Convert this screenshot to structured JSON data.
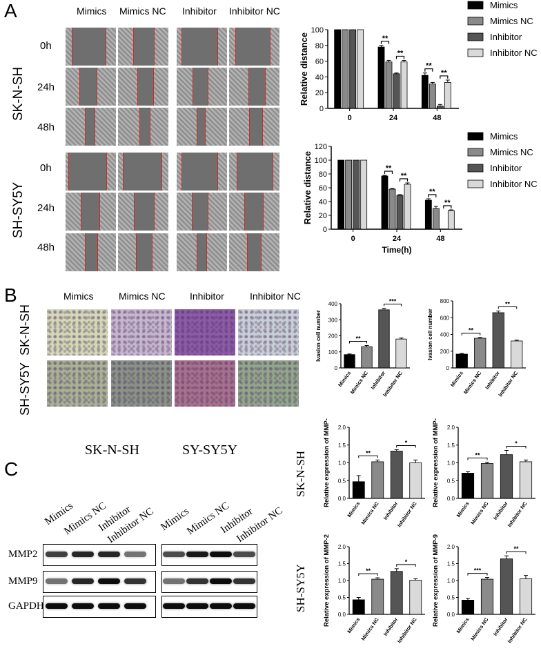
{
  "panels": {
    "a": "A",
    "b": "B",
    "c": "C"
  },
  "panelA": {
    "columns": [
      "Mimics",
      "Mimics NC",
      "Inhibitor",
      "Inhibitor NC"
    ],
    "cell_lines": [
      "SK-N-SH",
      "SH-SY5Y"
    ],
    "times": [
      "0h",
      "24h",
      "48h"
    ]
  },
  "panelB": {
    "columns": [
      "Mimics",
      "Mimics NC",
      "Inhibitor",
      "Inhibitor NC"
    ],
    "cell_lines": [
      "SK-N-SH",
      "SH-SY5Y"
    ]
  },
  "panelC": {
    "blot_titles": [
      "SK-N-SH",
      "SY-SY5Y"
    ],
    "lanes": [
      "Mimics",
      "Mimics NC",
      "Inhibitor",
      "Inhibitor NC"
    ],
    "rows": [
      "MMP2",
      "MMP9",
      "GAPDH"
    ],
    "side_labels": [
      "SK-N-SH",
      "SH-SY5Y"
    ]
  },
  "colors": {
    "black": "#000000",
    "dark_gray": "#555555",
    "mid_gray": "#8a8a8a",
    "light_gray": "#d9d9d9",
    "scratch_edge": "#d02a2a"
  },
  "chart_data": [
    {
      "type": "bar",
      "id": "a1",
      "categories": [
        "0",
        "24",
        "48"
      ],
      "series": [
        {
          "name": "Mimics",
          "values": [
            100,
            78,
            42
          ],
          "err": [
            0,
            2,
            3
          ]
        },
        {
          "name": "Mimics NC",
          "values": [
            100,
            59,
            31
          ],
          "err": [
            0,
            2,
            2
          ]
        },
        {
          "name": "Inhibitor",
          "values": [
            100,
            44,
            3
          ],
          "err": [
            0,
            1,
            2
          ]
        },
        {
          "name": "Inhibitor NC",
          "values": [
            100,
            59,
            33
          ],
          "err": [
            0,
            2,
            3
          ]
        }
      ],
      "ylabel": "Relative distance",
      "xlabel": "",
      "ylim": [
        0,
        100
      ],
      "yticks": [
        "0",
        "20",
        "40",
        "60",
        "80",
        "100"
      ],
      "sig": [
        "**",
        "**",
        "**",
        "**"
      ],
      "legend": "right"
    },
    {
      "type": "bar",
      "id": "a2",
      "categories": [
        "0",
        "24",
        "48"
      ],
      "series": [
        {
          "name": "Mimics",
          "values": [
            100,
            77,
            42
          ],
          "err": [
            0,
            1,
            2
          ]
        },
        {
          "name": "Mimics NC",
          "values": [
            100,
            58,
            30
          ],
          "err": [
            0,
            1,
            3
          ]
        },
        {
          "name": "Inhibitor",
          "values": [
            100,
            49,
            0
          ],
          "err": [
            0,
            1,
            0
          ]
        },
        {
          "name": "Inhibitor NC",
          "values": [
            100,
            65,
            27
          ],
          "err": [
            0,
            2,
            1
          ]
        }
      ],
      "ylabel": "Relative distance",
      "xlabel": "Time(h)",
      "ylim": [
        0,
        120
      ],
      "yticks": [
        "0",
        "20",
        "40",
        "60",
        "80",
        "100",
        "120"
      ],
      "sig": [
        "**",
        "**",
        "**",
        "**"
      ],
      "legend": "right"
    },
    {
      "type": "bar",
      "id": "b1",
      "categories": [
        "Mimics",
        "Mimics NC",
        "Inhibitor",
        "Inhibitor NC"
      ],
      "values": [
        83,
        132,
        362,
        180
      ],
      "err": [
        4,
        8,
        10,
        6
      ],
      "colors": [
        "#000000",
        "#8a8a8a",
        "#555555",
        "#d9d9d9"
      ],
      "ylabel": "Ivasion cell number",
      "ylim": [
        0,
        400
      ],
      "yticks": [
        "0",
        "100",
        "200",
        "300",
        "400"
      ],
      "sig": [
        "**",
        "***"
      ]
    },
    {
      "type": "bar",
      "id": "b2",
      "categories": [
        "Mimics",
        "Mimics NC",
        "Inhibitor",
        "Inhibitor NC"
      ],
      "values": [
        165,
        355,
        660,
        322
      ],
      "err": [
        8,
        10,
        20,
        10
      ],
      "colors": [
        "#000000",
        "#8a8a8a",
        "#555555",
        "#d9d9d9"
      ],
      "ylabel": "Ivasion cell number",
      "ylim": [
        0,
        800
      ],
      "yticks": [
        "0",
        "200",
        "400",
        "600",
        "800"
      ],
      "sig": [
        "**",
        "**"
      ]
    },
    {
      "type": "bar",
      "id": "c1",
      "categories": [
        "Mimics",
        "Mimics NC",
        "Inhibitor",
        "Inhibitor NC"
      ],
      "values": [
        0.47,
        1.03,
        1.33,
        1.0
      ],
      "err": [
        0.17,
        0.05,
        0.04,
        0.08
      ],
      "colors": [
        "#000000",
        "#8a8a8a",
        "#555555",
        "#d9d9d9"
      ],
      "ylabel": "Relative expression of MMP-",
      "ylim": [
        0,
        2.0
      ],
      "yticks": [
        "0.0",
        "0.5",
        "1.0",
        "1.5",
        "2.0"
      ],
      "sig": [
        "**",
        "*"
      ]
    },
    {
      "type": "bar",
      "id": "c2",
      "categories": [
        "Mimics",
        "Mimics NC",
        "Inhibitor",
        "Inhibitor NC"
      ],
      "values": [
        0.71,
        0.98,
        1.23,
        1.03
      ],
      "err": [
        0.04,
        0.04,
        0.12,
        0.05
      ],
      "colors": [
        "#000000",
        "#8a8a8a",
        "#555555",
        "#d9d9d9"
      ],
      "ylabel": "Relative expression of MMP-",
      "ylim": [
        0,
        2.0
      ],
      "yticks": [
        "0.0",
        "0.5",
        "1.0",
        "1.5",
        "2.0"
      ],
      "sig": [
        "**",
        "*"
      ]
    },
    {
      "type": "bar",
      "id": "c3",
      "categories": [
        "Mimics",
        "Mimics NC",
        "Inhibitor",
        "Inhibitor NC"
      ],
      "values": [
        0.43,
        1.04,
        1.27,
        1.01
      ],
      "err": [
        0.07,
        0.04,
        0.08,
        0.04
      ],
      "colors": [
        "#000000",
        "#8a8a8a",
        "#555555",
        "#d9d9d9"
      ],
      "ylabel": "Relative expression of MMP-2",
      "ylim": [
        0,
        2.0
      ],
      "yticks": [
        "0.0",
        "0.5",
        "1.0",
        "1.5",
        "2.0"
      ],
      "sig": [
        "**",
        "*"
      ]
    },
    {
      "type": "bar",
      "id": "c4",
      "categories": [
        "Mimics",
        "Mimics NC",
        "Inhibitor",
        "Inhibitor NC"
      ],
      "values": [
        0.42,
        1.04,
        1.64,
        1.05
      ],
      "err": [
        0.05,
        0.05,
        0.09,
        0.1
      ],
      "colors": [
        "#000000",
        "#8a8a8a",
        "#555555",
        "#d9d9d9"
      ],
      "ylabel": "Relative expression of MMP-9",
      "ylim": [
        0,
        2.0
      ],
      "yticks": [
        "0.0",
        "0.5",
        "1.0",
        "1.5",
        "2.0"
      ],
      "sig": [
        "***",
        "**"
      ]
    }
  ]
}
